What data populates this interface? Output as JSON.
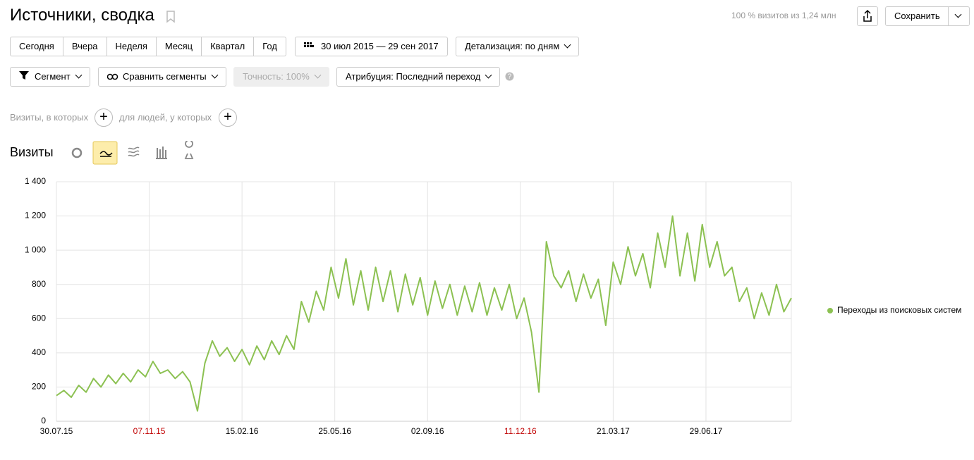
{
  "header": {
    "title": "Источники, сводка",
    "sample_info": "100 % визитов из 1,24 млн",
    "save": "Сохранить"
  },
  "periods": [
    "Сегодня",
    "Вчера",
    "Неделя",
    "Месяц",
    "Квартал",
    "Год"
  ],
  "date_range": "30 июл 2015 — 29 сен 2017",
  "detail": "Детализация: по дням",
  "segment": "Сегмент",
  "compare": "Сравнить сегменты",
  "accuracy": "Точность: 100%",
  "attribution": "Атрибуция: Последний переход",
  "filters": {
    "visits": "Визиты, в которых",
    "people": "для людей, у которых"
  },
  "section_title": "Визиты",
  "chart_data": {
    "type": "line",
    "x": [
      0,
      8,
      16,
      24,
      32,
      40,
      48,
      56,
      64,
      72,
      80,
      88,
      96,
      104,
      112,
      120,
      128,
      136,
      144,
      152,
      160,
      168,
      176,
      184,
      192,
      200,
      208,
      216,
      224,
      232,
      240,
      248,
      256,
      264,
      272,
      280,
      288,
      296,
      304,
      312,
      320,
      328,
      336,
      344,
      352,
      360,
      368,
      376,
      384,
      392,
      400,
      408,
      416,
      424,
      432,
      440,
      448,
      456,
      464,
      472,
      480,
      488,
      496,
      504,
      512,
      520,
      528,
      536,
      544,
      552,
      560,
      568,
      576,
      584,
      592,
      600,
      608,
      616,
      624,
      632,
      640,
      648,
      656,
      664,
      672,
      680,
      688,
      696,
      704,
      712,
      720,
      728,
      736,
      744,
      752,
      760,
      768,
      776,
      784,
      792
    ],
    "series": [
      {
        "name": "Переходы из поисковых систем",
        "color": "#8cc152",
        "values": [
          150,
          180,
          140,
          210,
          170,
          250,
          200,
          270,
          220,
          280,
          230,
          300,
          260,
          350,
          280,
          300,
          250,
          290,
          230,
          60,
          340,
          470,
          380,
          430,
          350,
          420,
          330,
          440,
          360,
          470,
          390,
          500,
          420,
          700,
          580,
          760,
          650,
          900,
          720,
          950,
          680,
          880,
          650,
          900,
          700,
          880,
          640,
          860,
          680,
          840,
          620,
          820,
          660,
          800,
          620,
          790,
          640,
          810,
          620,
          780,
          650,
          800,
          600,
          720,
          520,
          170,
          1050,
          850,
          780,
          880,
          700,
          860,
          720,
          830,
          560,
          930,
          800,
          1020,
          850,
          980,
          780,
          1100,
          900,
          1200,
          850,
          1100,
          820,
          1150,
          900,
          1050,
          850,
          900,
          700,
          780,
          600,
          750,
          620,
          800,
          640,
          720
        ]
      }
    ],
    "xlim": [
      0,
      792
    ],
    "xticks": [
      {
        "value": 0,
        "label": "30.07.15"
      },
      {
        "value": 100,
        "label": "07.11.15",
        "color": "#c00000"
      },
      {
        "value": 200,
        "label": "15.02.16"
      },
      {
        "value": 300,
        "label": "25.05.16"
      },
      {
        "value": 400,
        "label": "02.09.16"
      },
      {
        "value": 500,
        "label": "11.12.16",
        "color": "#c00000"
      },
      {
        "value": 600,
        "label": "21.03.17"
      },
      {
        "value": 700,
        "label": "29.06.17"
      }
    ],
    "ylim": [
      0,
      1400
    ],
    "yticks": [
      0,
      200,
      400,
      600,
      800,
      {
        "value": 1000,
        "label": "1 000"
      },
      {
        "value": 1200,
        "label": "1 200"
      },
      {
        "value": 1400,
        "label": "1 400"
      }
    ],
    "grid": true
  }
}
